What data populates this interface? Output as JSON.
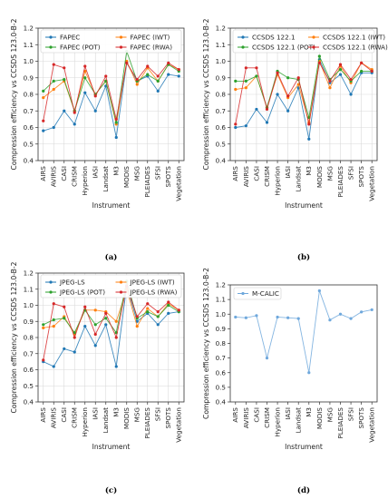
{
  "chart_data": [
    {
      "type": "line",
      "caption": "(a)",
      "xlabel": "Instrument",
      "ylabel": "Compression efficiency vs CCSDS 123.0-B-2",
      "ylim": [
        0.4,
        1.2
      ],
      "yticks": [
        0.4,
        0.5,
        0.6,
        0.7,
        0.8,
        0.9,
        1.0,
        1.1,
        1.2
      ],
      "yticklabels": [
        "0.4",
        "0.5",
        "0.6",
        "0.7",
        "0.8",
        "0.9",
        "1.0",
        "1.1",
        "1.2"
      ],
      "legend_position": "top",
      "grid": true,
      "categories": [
        "AIRS",
        "AVIRIS",
        "CASI",
        "CRISM",
        "Hyperion",
        "IASI",
        "Landsat",
        "M3",
        "MODIS",
        "MSG",
        "PLEIADES",
        "SFSI",
        "SPOTS",
        "Vegetation"
      ],
      "series": [
        {
          "name": "FAPEC",
          "color": "#1f77b4",
          "values": [
            0.58,
            0.6,
            0.7,
            0.62,
            0.81,
            0.7,
            0.85,
            0.54,
            0.99,
            0.88,
            0.91,
            0.82,
            0.92,
            0.91
          ]
        },
        {
          "name": "FAPEC (IWT)",
          "color": "#ff7f0e",
          "values": [
            0.78,
            0.83,
            0.88,
            0.7,
            0.94,
            0.8,
            0.88,
            0.62,
            1.0,
            0.86,
            0.96,
            0.88,
            0.98,
            0.95
          ]
        },
        {
          "name": "FAPEC (POT)",
          "color": "#2ca02c",
          "values": [
            0.82,
            0.88,
            0.89,
            0.7,
            0.9,
            0.8,
            0.88,
            0.63,
            1.06,
            0.88,
            0.92,
            0.88,
            0.98,
            0.94
          ]
        },
        {
          "name": "FAPEC (RWA)",
          "color": "#d62728",
          "values": [
            0.64,
            0.98,
            0.96,
            0.69,
            0.97,
            0.79,
            0.91,
            0.65,
            0.99,
            0.89,
            0.97,
            0.91,
            0.99,
            0.95
          ]
        }
      ]
    },
    {
      "type": "line",
      "caption": "(b)",
      "xlabel": "Instrument",
      "ylabel": "Compression efficiency vs CCSDS 123.0-B-2",
      "ylim": [
        0.4,
        1.2
      ],
      "yticks": [
        0.4,
        0.5,
        0.6,
        0.7,
        0.8,
        0.9,
        1.0,
        1.1,
        1.2
      ],
      "yticklabels": [
        "0.4",
        "0.5",
        "0.6",
        "0.7",
        "0.8",
        "0.9",
        "1.0",
        "1.1",
        "1.2"
      ],
      "legend_position": "top",
      "grid": true,
      "categories": [
        "AIRS",
        "AVIRIS",
        "CASI",
        "CRISM",
        "Hyperion",
        "IASI",
        "Landsat",
        "M3",
        "MODIS",
        "MSG",
        "PLEIADES",
        "SFSI",
        "SPOTS",
        "Vegetation"
      ],
      "series": [
        {
          "name": "CCSDS 122.1",
          "color": "#1f77b4",
          "values": [
            0.6,
            0.61,
            0.71,
            0.63,
            0.8,
            0.7,
            0.84,
            0.53,
            1.01,
            0.87,
            0.92,
            0.8,
            0.93,
            0.93
          ]
        },
        {
          "name": "CCSDS 122.1 (IWT)",
          "color": "#ff7f0e",
          "values": [
            0.83,
            0.84,
            0.91,
            0.72,
            0.92,
            0.78,
            0.86,
            0.63,
            1.0,
            0.84,
            0.97,
            0.87,
            0.99,
            0.95
          ]
        },
        {
          "name": "CCSDS 122.1 (POT)",
          "color": "#2ca02c",
          "values": [
            0.88,
            0.88,
            0.91,
            0.72,
            0.94,
            0.9,
            0.89,
            0.66,
            1.03,
            0.89,
            0.95,
            0.88,
            0.94,
            0.94
          ]
        },
        {
          "name": "CCSDS 122.1 (RWA)",
          "color": "#d62728",
          "values": [
            0.62,
            0.96,
            0.96,
            0.71,
            0.93,
            0.79,
            0.9,
            0.62,
            0.99,
            0.88,
            0.98,
            0.89,
            0.99,
            0.94
          ]
        }
      ]
    },
    {
      "type": "line",
      "caption": "(c)",
      "xlabel": "Instrument",
      "ylabel": "Compression efficiency vs CCSDS 123.0-B-2",
      "ylim": [
        0.4,
        1.2
      ],
      "yticks": [
        0.4,
        0.5,
        0.6,
        0.7,
        0.8,
        0.9,
        1.0,
        1.1,
        1.2
      ],
      "yticklabels": [
        "0.4",
        "0.5",
        "0.6",
        "0.7",
        "0.8",
        "0.9",
        "1.0",
        "1.1",
        "1.2"
      ],
      "legend_position": "top",
      "grid": true,
      "categories": [
        "AIRS",
        "AVIRIS",
        "CASI",
        "CRISM",
        "Hyperion",
        "IASI",
        "Landsat",
        "M3",
        "MODIS",
        "MSG",
        "PLEIADES",
        "SFSI",
        "SPOTS",
        "Vegetation"
      ],
      "series": [
        {
          "name": "JPEG-LS",
          "color": "#1f77b4",
          "values": [
            0.65,
            0.62,
            0.73,
            0.71,
            0.87,
            0.75,
            0.88,
            0.62,
            1.12,
            0.9,
            0.95,
            0.88,
            0.95,
            0.96
          ]
        },
        {
          "name": "JPEG-LS (IWT)",
          "color": "#ff7f0e",
          "values": [
            0.86,
            0.87,
            0.93,
            0.82,
            0.97,
            0.97,
            0.96,
            0.9,
            1.1,
            0.87,
            0.98,
            0.93,
            1.01,
            0.97
          ]
        },
        {
          "name": "JPEG-LS (POT)",
          "color": "#2ca02c",
          "values": [
            0.88,
            0.91,
            0.92,
            0.83,
            0.97,
            0.88,
            0.92,
            0.83,
            1.15,
            0.92,
            0.96,
            0.93,
            1.0,
            0.96
          ]
        },
        {
          "name": "JPEG-LS (RWA)",
          "color": "#d62728",
          "values": [
            0.66,
            1.01,
            0.99,
            0.8,
            0.99,
            0.82,
            0.95,
            0.8,
            1.12,
            0.93,
            1.01,
            0.96,
            1.02,
            0.97
          ]
        }
      ]
    },
    {
      "type": "line",
      "caption": "(d)",
      "xlabel": "Instrument",
      "ylabel": "Compression efficiency vs CCSDS 123.0-B-2",
      "ylim": [
        0.4,
        1.2
      ],
      "yticks": [
        0.4,
        0.5,
        0.6,
        0.7,
        0.8,
        0.9,
        1.0,
        1.1,
        1.2
      ],
      "yticklabels": [
        "0.4",
        "0.5",
        "0.6",
        "0.7",
        "0.8",
        "0.9",
        "1.0",
        "1.1",
        "1.2"
      ],
      "legend_position": "top-left",
      "grid": false,
      "categories": [
        "AIRS",
        "AVIRIS",
        "CASI",
        "CRISM",
        "Hyperion",
        "IASI",
        "Landsat",
        "M3",
        "MODIS",
        "MSG",
        "PLEIADES",
        "SFSI",
        "SPOTS",
        "Vegetation"
      ],
      "series": [
        {
          "name": "M-CALIC",
          "color": "#6fa8dc",
          "values": [
            0.98,
            0.975,
            0.99,
            0.7,
            0.98,
            0.975,
            0.97,
            0.6,
            1.16,
            0.96,
            1.0,
            0.97,
            1.015,
            1.03
          ]
        }
      ]
    }
  ]
}
